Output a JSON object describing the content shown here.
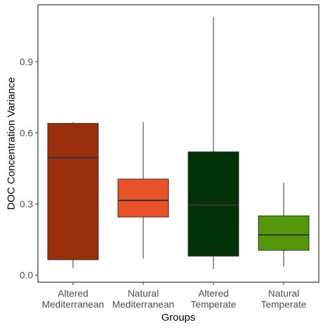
{
  "chart_data": {
    "type": "boxplot",
    "xlabel": "Groups",
    "ylabel": "DOC Concentration Variance",
    "ylim": [
      -0.03,
      1.14
    ],
    "yticks": [
      0.0,
      0.3,
      0.6,
      0.9
    ],
    "ytick_labels": [
      "0.0",
      "0.3",
      "0.6",
      "0.9"
    ],
    "grid": false,
    "legend": "none",
    "categories": [
      [
        "Altered",
        "Mediterranean"
      ],
      [
        "Natural",
        "Mediterranean"
      ],
      [
        "Altered",
        "Temperate"
      ],
      [
        "Natural",
        "Temperate"
      ]
    ],
    "boxes": [
      {
        "lower_whisker": 0.03,
        "q1": 0.065,
        "median": 0.495,
        "q3": 0.64,
        "upper_whisker": 0.645,
        "color": "#99300b"
      },
      {
        "lower_whisker": 0.07,
        "q1": 0.245,
        "median": 0.315,
        "q3": 0.405,
        "upper_whisker": 0.645,
        "color": "#e95228"
      },
      {
        "lower_whisker": 0.025,
        "q1": 0.08,
        "median": 0.295,
        "q3": 0.52,
        "upper_whisker": 1.09,
        "color": "#013307"
      },
      {
        "lower_whisker": 0.035,
        "q1": 0.105,
        "median": 0.17,
        "q3": 0.25,
        "upper_whisker": 0.39,
        "color": "#529809"
      }
    ]
  }
}
